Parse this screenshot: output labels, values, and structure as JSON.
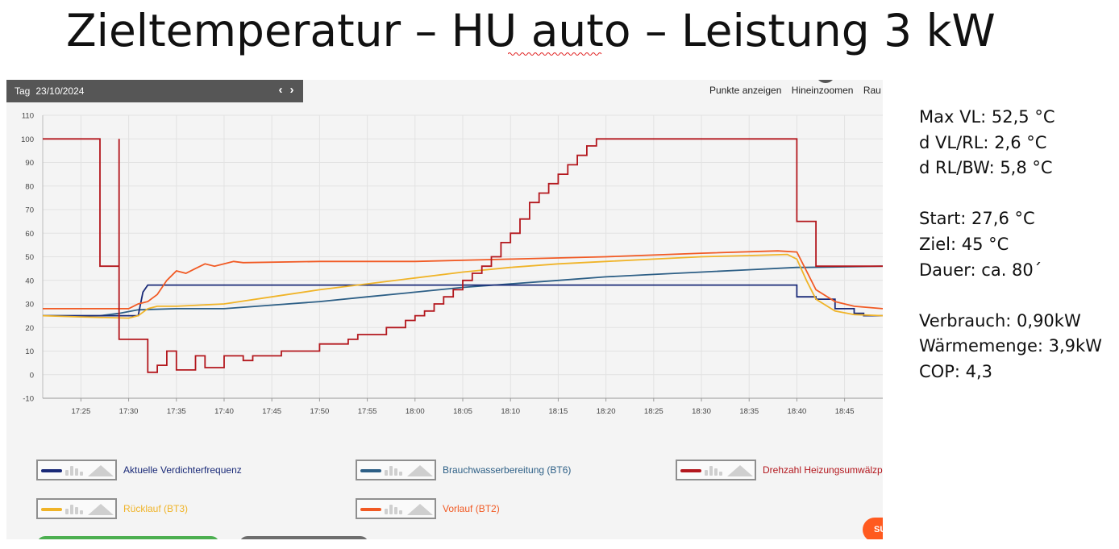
{
  "slide": {
    "title": "Zieltemperatur – HU auto – Leistung 3 kW"
  },
  "panel": {
    "period_label": "Tag",
    "date": "23/10/2024",
    "nav_prev": "‹",
    "nav_next": "›",
    "toolbar": [
      "Punkte anzeigen",
      "Hineinzoomen",
      "Rau"
    ],
    "support_label": "SU"
  },
  "stats": {
    "lines": [
      "Max VL: 52,5 °C",
      "d VL/RL: 2,6 °C",
      "d RL/BW: 5,8 °C",
      "",
      "Start: 27,6 °C",
      "Ziel: 45 °C",
      "Dauer: ca. 80´",
      "",
      "Verbrauch: 0,90kW",
      "Wärmemenge: 3,9kW",
      "COP: 4,3"
    ]
  },
  "chart_data": {
    "type": "line",
    "title": "",
    "xlabel": "",
    "ylabel": "",
    "ylim": [
      -10,
      110
    ],
    "yticks": [
      -10,
      0,
      10,
      20,
      30,
      40,
      50,
      60,
      70,
      80,
      90,
      100,
      110
    ],
    "xlim": [
      "17:21",
      "18:49"
    ],
    "xticks": [
      "17:25",
      "17:30",
      "17:35",
      "17:40",
      "17:45",
      "17:50",
      "17:55",
      "18:00",
      "18:05",
      "18:10",
      "18:15",
      "18:20",
      "18:25",
      "18:30",
      "18:35",
      "18:40",
      "18:45"
    ],
    "grid": true,
    "legend_position": "bottom",
    "series": [
      {
        "name": "Aktuelle Verdichterfrequenz",
        "color": "#1a2a78",
        "step": true,
        "points": [
          [
            "17:21",
            25
          ],
          [
            "17:31",
            25
          ],
          [
            "17:31.5",
            35
          ],
          [
            "17:32",
            38
          ],
          [
            "18:40",
            38
          ],
          [
            "18:40",
            33
          ],
          [
            "18:42",
            33
          ],
          [
            "18:42",
            32
          ],
          [
            "18:44",
            32
          ],
          [
            "18:44",
            28
          ],
          [
            "18:46",
            28
          ],
          [
            "18:46",
            26
          ],
          [
            "18:47",
            26
          ],
          [
            "18:47",
            25
          ],
          [
            "18:49",
            25
          ]
        ]
      },
      {
        "name": "Brauchwasserbereitung (BT6)",
        "color": "#2d5f86",
        "step": false,
        "points": [
          [
            "17:21",
            25
          ],
          [
            "17:27",
            25
          ],
          [
            "17:29",
            26
          ],
          [
            "17:31",
            27.5
          ],
          [
            "17:35",
            28
          ],
          [
            "17:40",
            28
          ],
          [
            "17:45",
            29.5
          ],
          [
            "17:50",
            31
          ],
          [
            "17:55",
            33
          ],
          [
            "18:00",
            35
          ],
          [
            "18:05",
            37
          ],
          [
            "18:10",
            38.5
          ],
          [
            "18:15",
            40
          ],
          [
            "18:20",
            41.5
          ],
          [
            "18:25",
            42.5
          ],
          [
            "18:30",
            43.5
          ],
          [
            "18:35",
            44.5
          ],
          [
            "18:40",
            45.5
          ],
          [
            "18:41",
            45.5
          ],
          [
            "18:49",
            46
          ]
        ]
      },
      {
        "name": "Drehzahl Heizungsumwälzpumpe",
        "legend_label": "Drehzahl Heizungsumwälzp",
        "color": "#b3171d",
        "step": true,
        "points": [
          [
            "17:21",
            100
          ],
          [
            "17:27",
            100
          ],
          [
            "17:27",
            46
          ],
          [
            "17:29",
            46
          ],
          [
            "17:29",
            100
          ],
          [
            "17:29",
            15
          ],
          [
            "17:32",
            15
          ],
          [
            "17:32",
            1
          ],
          [
            "17:33",
            1
          ],
          [
            "17:33",
            4
          ],
          [
            "17:34",
            4
          ],
          [
            "17:34",
            10
          ],
          [
            "17:35",
            10
          ],
          [
            "17:35",
            2
          ],
          [
            "17:37",
            2
          ],
          [
            "17:37",
            8
          ],
          [
            "17:38",
            8
          ],
          [
            "17:38",
            3
          ],
          [
            "17:40",
            3
          ],
          [
            "17:40",
            8
          ],
          [
            "17:42",
            8
          ],
          [
            "17:42",
            6
          ],
          [
            "17:43",
            6
          ],
          [
            "17:43",
            8
          ],
          [
            "17:46",
            8
          ],
          [
            "17:46",
            10
          ],
          [
            "17:50",
            10
          ],
          [
            "17:50",
            13
          ],
          [
            "17:53",
            13
          ],
          [
            "17:53",
            15
          ],
          [
            "17:54",
            15
          ],
          [
            "17:54",
            17
          ],
          [
            "17:57",
            17
          ],
          [
            "17:57",
            20
          ],
          [
            "17:59",
            20
          ],
          [
            "17:59",
            23
          ],
          [
            "18:00",
            23
          ],
          [
            "18:00",
            25
          ],
          [
            "18:01",
            25
          ],
          [
            "18:01",
            27
          ],
          [
            "18:02",
            27
          ],
          [
            "18:02",
            30
          ],
          [
            "18:03",
            30
          ],
          [
            "18:03",
            33
          ],
          [
            "18:04",
            33
          ],
          [
            "18:04",
            36
          ],
          [
            "18:05",
            36
          ],
          [
            "18:05",
            40
          ],
          [
            "18:06",
            40
          ],
          [
            "18:06",
            43
          ],
          [
            "18:07",
            43
          ],
          [
            "18:07",
            46
          ],
          [
            "18:08",
            46
          ],
          [
            "18:08",
            50
          ],
          [
            "18:09",
            50
          ],
          [
            "18:09",
            56
          ],
          [
            "18:10",
            56
          ],
          [
            "18:10",
            60
          ],
          [
            "18:11",
            60
          ],
          [
            "18:11",
            66
          ],
          [
            "18:12",
            66
          ],
          [
            "18:12",
            73
          ],
          [
            "18:13",
            73
          ],
          [
            "18:13",
            77
          ],
          [
            "18:14",
            77
          ],
          [
            "18:14",
            81
          ],
          [
            "18:15",
            81
          ],
          [
            "18:15",
            85
          ],
          [
            "18:16",
            85
          ],
          [
            "18:16",
            89
          ],
          [
            "18:17",
            89
          ],
          [
            "18:17",
            93
          ],
          [
            "18:18",
            93
          ],
          [
            "18:18",
            97
          ],
          [
            "18:19",
            97
          ],
          [
            "18:19",
            100
          ],
          [
            "18:40",
            100
          ],
          [
            "18:40",
            65
          ],
          [
            "18:42",
            65
          ],
          [
            "18:42",
            46
          ],
          [
            "18:49",
            46
          ]
        ]
      },
      {
        "name": "Rücklauf (BT3)",
        "color": "#f0b429",
        "step": false,
        "points": [
          [
            "17:21",
            25
          ],
          [
            "17:25",
            24.5
          ],
          [
            "17:30",
            24
          ],
          [
            "17:31",
            25
          ],
          [
            "17:32",
            28
          ],
          [
            "17:33",
            29
          ],
          [
            "17:35",
            29
          ],
          [
            "17:40",
            30
          ],
          [
            "17:45",
            33
          ],
          [
            "17:50",
            36
          ],
          [
            "17:55",
            38.5
          ],
          [
            "18:00",
            41
          ],
          [
            "18:05",
            43.5
          ],
          [
            "18:10",
            45.5
          ],
          [
            "18:15",
            47
          ],
          [
            "18:20",
            48
          ],
          [
            "18:25",
            49
          ],
          [
            "18:30",
            50
          ],
          [
            "18:35",
            50.5
          ],
          [
            "18:39",
            51
          ],
          [
            "18:40",
            49
          ],
          [
            "18:41",
            40
          ],
          [
            "18:42",
            32
          ],
          [
            "18:44",
            27
          ],
          [
            "18:46",
            25.5
          ],
          [
            "18:49",
            25
          ]
        ]
      },
      {
        "name": "Vorlauf (BT2)",
        "color": "#f15a24",
        "step": false,
        "points": [
          [
            "17:21",
            28
          ],
          [
            "17:30",
            28
          ],
          [
            "17:31",
            30
          ],
          [
            "17:32",
            31
          ],
          [
            "17:33",
            34
          ],
          [
            "17:34",
            40
          ],
          [
            "17:35",
            44
          ],
          [
            "17:36",
            43
          ],
          [
            "17:37",
            45
          ],
          [
            "17:38",
            47
          ],
          [
            "17:39",
            46
          ],
          [
            "17:40",
            47
          ],
          [
            "17:41",
            48
          ],
          [
            "17:42",
            47.5
          ],
          [
            "17:50",
            48
          ],
          [
            "18:00",
            48
          ],
          [
            "18:10",
            49
          ],
          [
            "18:20",
            50
          ],
          [
            "18:30",
            51.5
          ],
          [
            "18:38",
            52.5
          ],
          [
            "18:40",
            52
          ],
          [
            "18:41",
            44
          ],
          [
            "18:42",
            36
          ],
          [
            "18:44",
            31
          ],
          [
            "18:46",
            29
          ],
          [
            "18:49",
            28
          ]
        ]
      }
    ]
  }
}
